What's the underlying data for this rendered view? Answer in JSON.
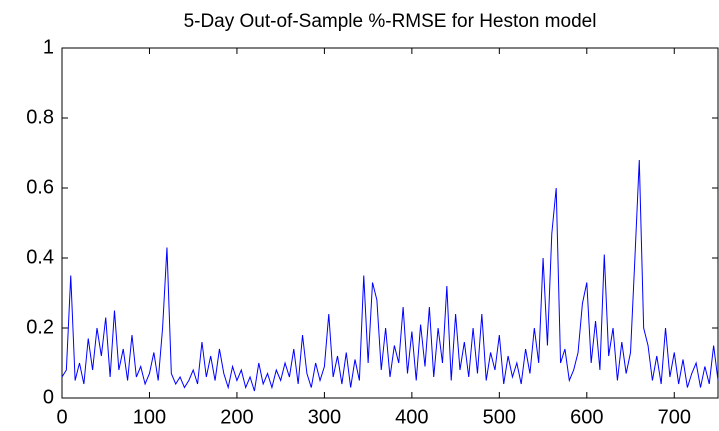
{
  "chart_data": {
    "type": "line",
    "title": "5-Day Out-of-Sample %-RMSE for Heston model",
    "xlim": [
      0,
      750
    ],
    "xticks": [
      0,
      100,
      200,
      300,
      400,
      500,
      600,
      700
    ],
    "ylim": [
      0,
      1
    ],
    "yticks": [
      0,
      0.2,
      0.4,
      0.6,
      0.8,
      1
    ],
    "series": [
      {
        "color": "#0000ff",
        "x": [
          0,
          5,
          10,
          15,
          20,
          25,
          30,
          35,
          40,
          45,
          50,
          55,
          60,
          65,
          70,
          75,
          80,
          85,
          90,
          95,
          100,
          105,
          110,
          115,
          120,
          125,
          130,
          135,
          140,
          145,
          150,
          155,
          160,
          165,
          170,
          175,
          180,
          185,
          190,
          195,
          200,
          205,
          210,
          215,
          220,
          225,
          230,
          235,
          240,
          245,
          250,
          255,
          260,
          265,
          270,
          275,
          280,
          285,
          290,
          295,
          300,
          305,
          310,
          315,
          320,
          325,
          330,
          335,
          340,
          345,
          350,
          355,
          360,
          365,
          370,
          375,
          380,
          385,
          390,
          395,
          400,
          405,
          410,
          415,
          420,
          425,
          430,
          435,
          440,
          445,
          450,
          455,
          460,
          465,
          470,
          475,
          480,
          485,
          490,
          495,
          500,
          505,
          510,
          515,
          520,
          525,
          530,
          535,
          540,
          545,
          550,
          555,
          560,
          565,
          570,
          575,
          580,
          585,
          590,
          595,
          600,
          605,
          610,
          615,
          620,
          625,
          630,
          635,
          640,
          645,
          650,
          655,
          660,
          665,
          670,
          675,
          680,
          685,
          690,
          695,
          700,
          705,
          710,
          715,
          720,
          725,
          730,
          735,
          740,
          745,
          750
        ],
        "values": [
          0.06,
          0.08,
          0.35,
          0.05,
          0.1,
          0.04,
          0.17,
          0.08,
          0.2,
          0.12,
          0.23,
          0.06,
          0.25,
          0.08,
          0.14,
          0.05,
          0.18,
          0.06,
          0.09,
          0.04,
          0.07,
          0.13,
          0.05,
          0.2,
          0.43,
          0.07,
          0.04,
          0.06,
          0.03,
          0.05,
          0.08,
          0.04,
          0.16,
          0.06,
          0.12,
          0.05,
          0.14,
          0.07,
          0.03,
          0.09,
          0.05,
          0.08,
          0.03,
          0.06,
          0.02,
          0.1,
          0.04,
          0.07,
          0.03,
          0.08,
          0.05,
          0.1,
          0.06,
          0.14,
          0.04,
          0.18,
          0.07,
          0.03,
          0.1,
          0.05,
          0.09,
          0.24,
          0.06,
          0.12,
          0.04,
          0.13,
          0.03,
          0.11,
          0.05,
          0.35,
          0.1,
          0.33,
          0.28,
          0.08,
          0.2,
          0.06,
          0.15,
          0.1,
          0.26,
          0.07,
          0.19,
          0.05,
          0.21,
          0.09,
          0.26,
          0.06,
          0.2,
          0.1,
          0.32,
          0.05,
          0.24,
          0.08,
          0.16,
          0.06,
          0.2,
          0.07,
          0.24,
          0.05,
          0.13,
          0.08,
          0.18,
          0.04,
          0.12,
          0.06,
          0.1,
          0.04,
          0.14,
          0.07,
          0.2,
          0.1,
          0.4,
          0.15,
          0.47,
          0.6,
          0.1,
          0.14,
          0.05,
          0.08,
          0.13,
          0.27,
          0.33,
          0.1,
          0.22,
          0.08,
          0.41,
          0.12,
          0.2,
          0.05,
          0.16,
          0.07,
          0.13,
          0.4,
          0.68,
          0.2,
          0.15,
          0.05,
          0.12,
          0.04,
          0.2,
          0.06,
          0.13,
          0.04,
          0.11,
          0.03,
          0.07,
          0.1,
          0.03,
          0.09,
          0.04,
          0.15,
          0.05
        ]
      }
    ]
  }
}
